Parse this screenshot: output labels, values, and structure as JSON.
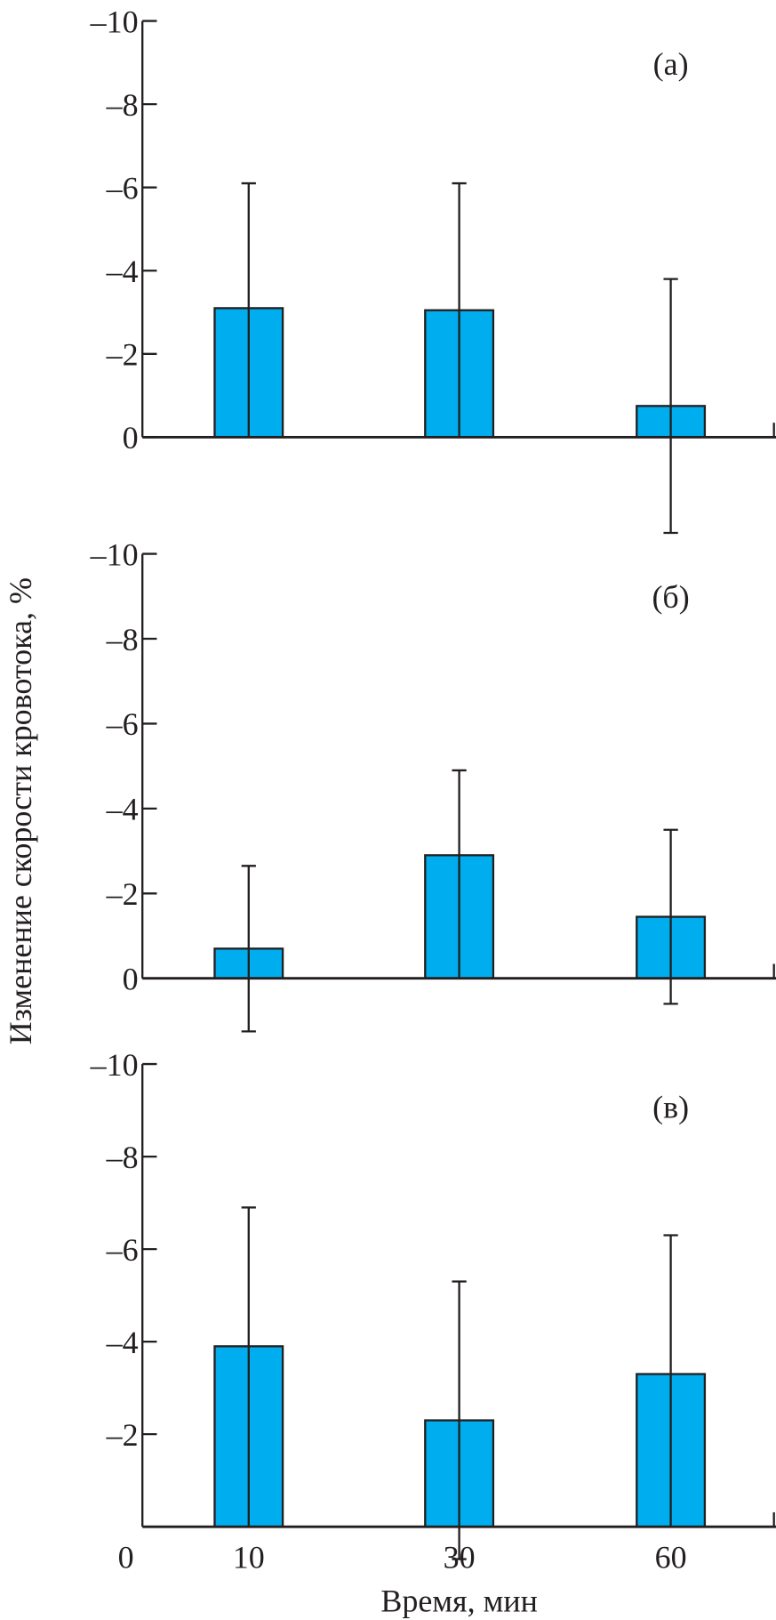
{
  "chart_data": {
    "type": "bar",
    "ylabel": "Изменение скорости кровотока, %",
    "xlabel": "Время, мин",
    "x_origin_label": "0",
    "categories": [
      "10",
      "30",
      "60"
    ],
    "bar_color": "#00aeef",
    "panels": [
      {
        "label": "(а)",
        "ylim": [
          0,
          -10
        ],
        "yticks": [
          0,
          -2,
          -4,
          -6,
          -8,
          -10
        ],
        "ytick_labels": [
          "0",
          "–2",
          "–4",
          "–6",
          "–8",
          "–10"
        ],
        "values": [
          -3.1,
          -3.05,
          -0.75
        ],
        "errors": [
          3.0,
          3.05,
          3.05
        ]
      },
      {
        "label": "(б)",
        "ylim": [
          0,
          -10
        ],
        "yticks": [
          0,
          -2,
          -4,
          -6,
          -8,
          -10
        ],
        "ytick_labels": [
          "0",
          "–2",
          "–4",
          "–6",
          "–8",
          "–10"
        ],
        "values": [
          -0.7,
          -2.9,
          -1.45
        ],
        "errors": [
          1.95,
          2.0,
          2.05
        ]
      },
      {
        "label": "(в)",
        "ylim": [
          0,
          -10
        ],
        "yticks": [
          -2,
          -4,
          -6,
          -8,
          -10
        ],
        "ytick_labels": [
          "–2",
          "–4",
          "–6",
          "–8",
          "–10"
        ],
        "values": [
          -3.9,
          -2.3,
          -3.3
        ],
        "errors": [
          3.0,
          3.0,
          3.0
        ]
      }
    ]
  }
}
